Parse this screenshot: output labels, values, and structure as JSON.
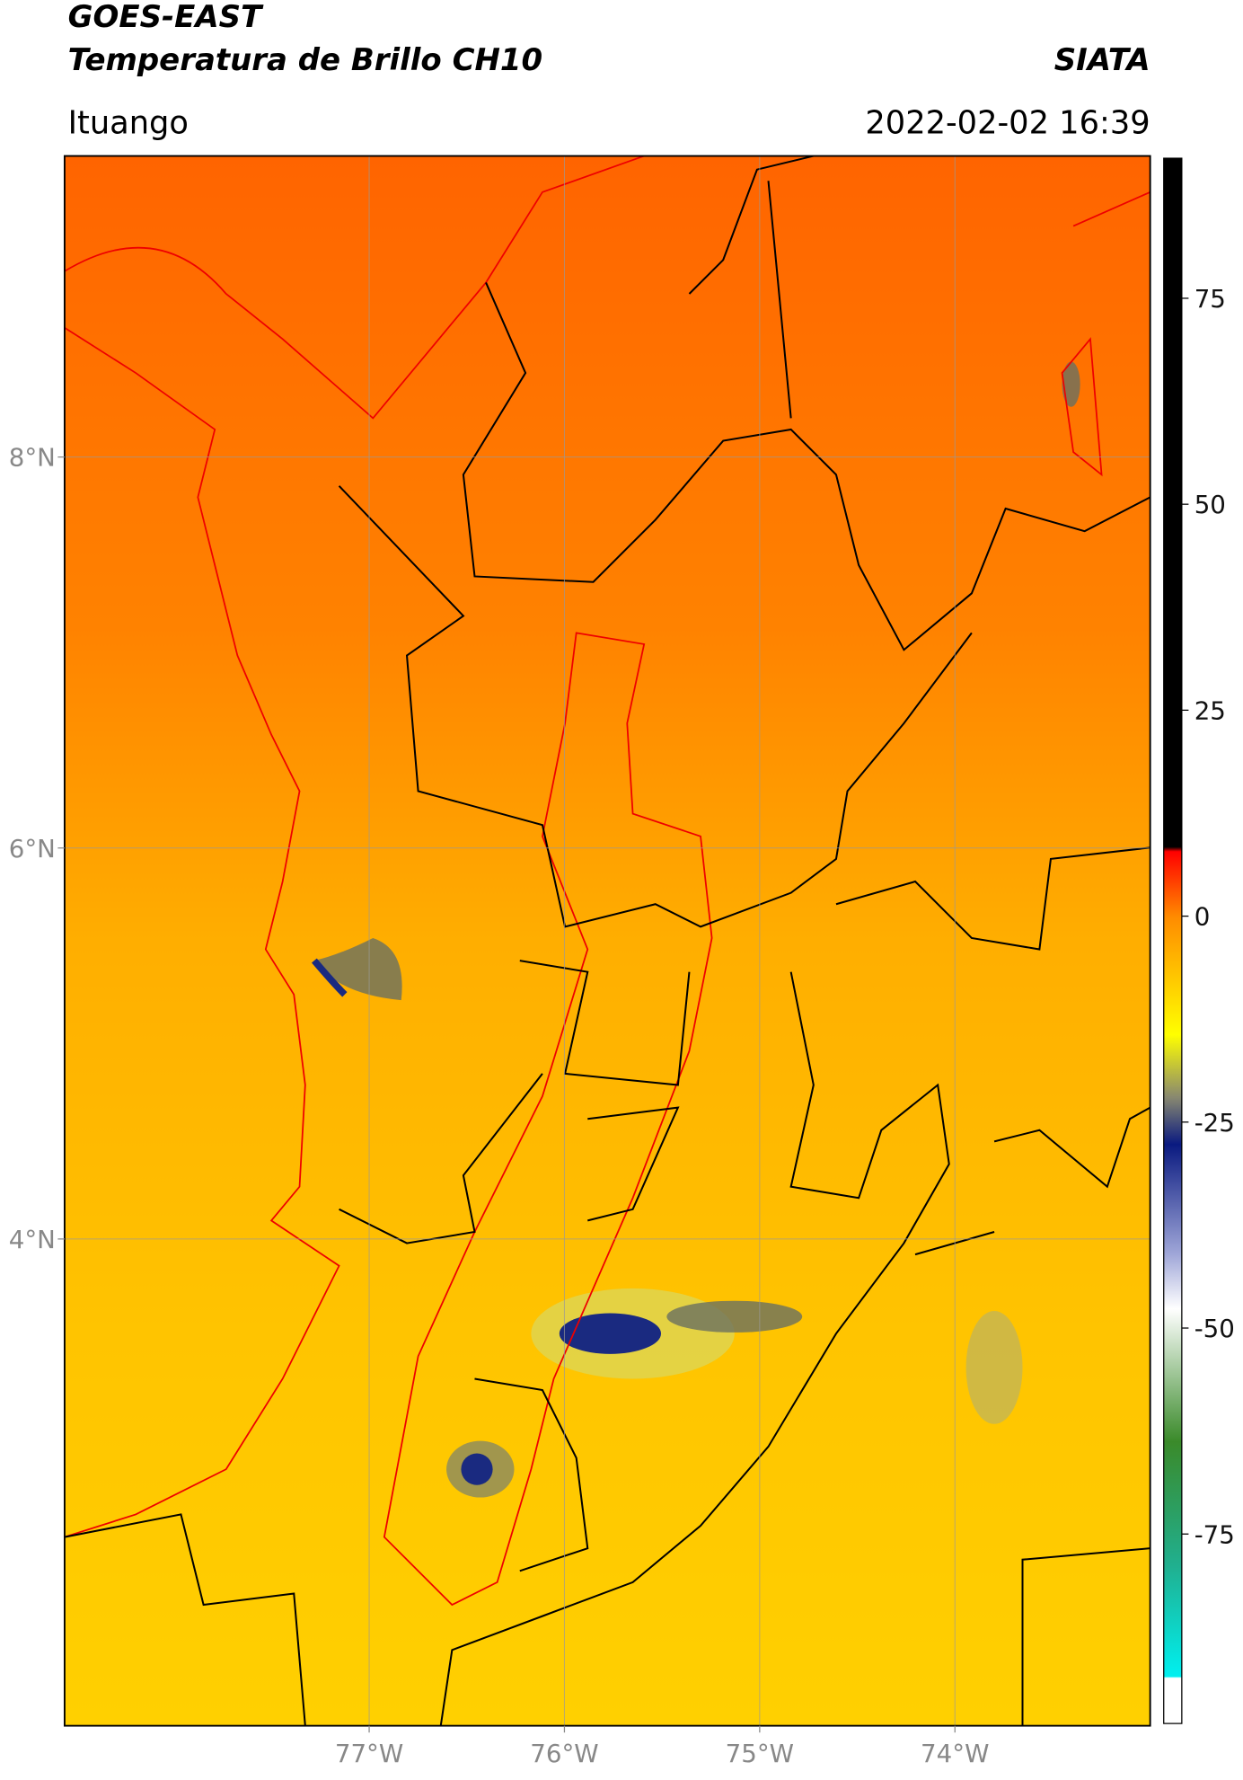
{
  "chart_data": {
    "type": "map",
    "title": "GOES-EAST",
    "subtitle": "Temperatura de Brillo CH10",
    "source": "SIATA",
    "location": "Ituango",
    "datetime": "2022-02-02 16:39",
    "xlim": [
      -78.56,
      -73.0
    ],
    "ylim": [
      1.51,
      9.54
    ],
    "xticks": [
      {
        "value": -77,
        "label": "77°W"
      },
      {
        "value": -76,
        "label": "76°W"
      },
      {
        "value": -75,
        "label": "75°W"
      },
      {
        "value": -74,
        "label": "74°W"
      }
    ],
    "yticks": [
      {
        "value": 8,
        "label": "8°N"
      },
      {
        "value": 6,
        "label": "6°N"
      },
      {
        "value": 4,
        "label": "4°N"
      }
    ],
    "grid": true,
    "colorbar": {
      "lim": [
        -98,
        92
      ],
      "ticks": [
        75,
        50,
        25,
        0,
        -25,
        -50,
        -75
      ]
    }
  }
}
